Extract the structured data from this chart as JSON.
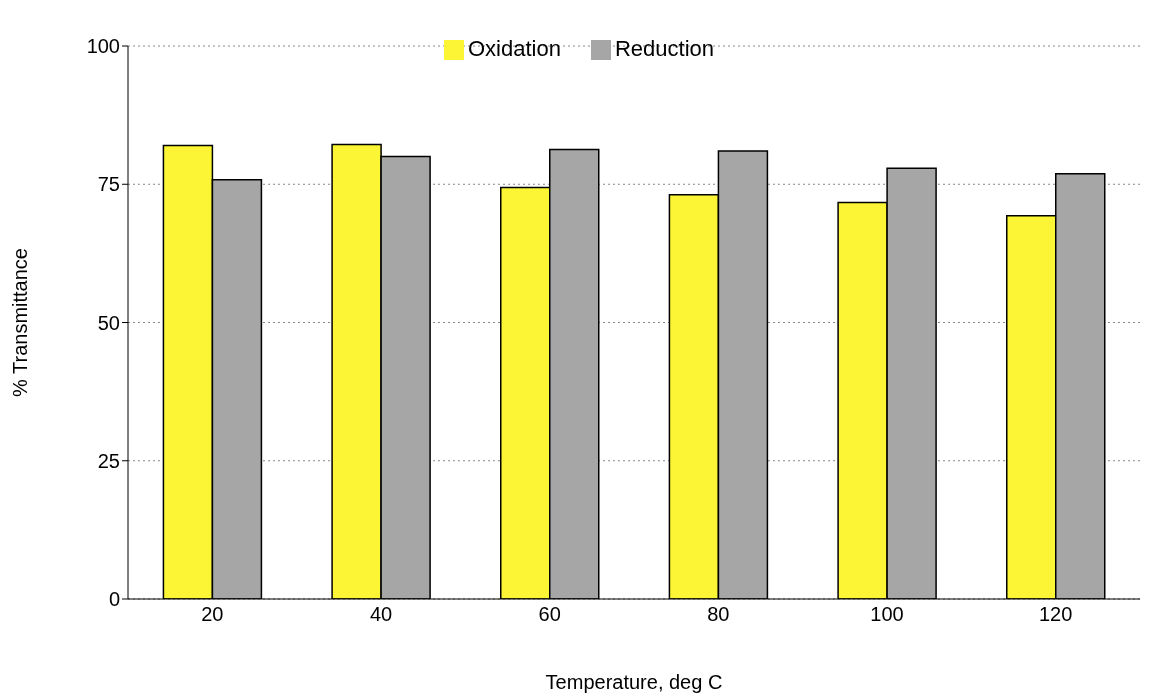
{
  "chart_data": {
    "type": "bar",
    "xlabel": "Temperature, deg C",
    "ylabel": "% Transmittance",
    "categories": [
      "20",
      "40",
      "60",
      "80",
      "100",
      "120"
    ],
    "series": [
      {
        "name": "Oxidation",
        "color": "#fbf535",
        "values": [
          82.0,
          82.2,
          74.4,
          73.1,
          71.7,
          69.3
        ]
      },
      {
        "name": "Reduction",
        "color": "#a6a6a6",
        "values": [
          75.8,
          80.0,
          81.3,
          81.0,
          77.9,
          76.9
        ]
      }
    ],
    "ylim": [
      0,
      100
    ],
    "yticks": [
      0,
      25,
      50,
      75,
      100
    ],
    "grid": "y",
    "legend": "top"
  }
}
